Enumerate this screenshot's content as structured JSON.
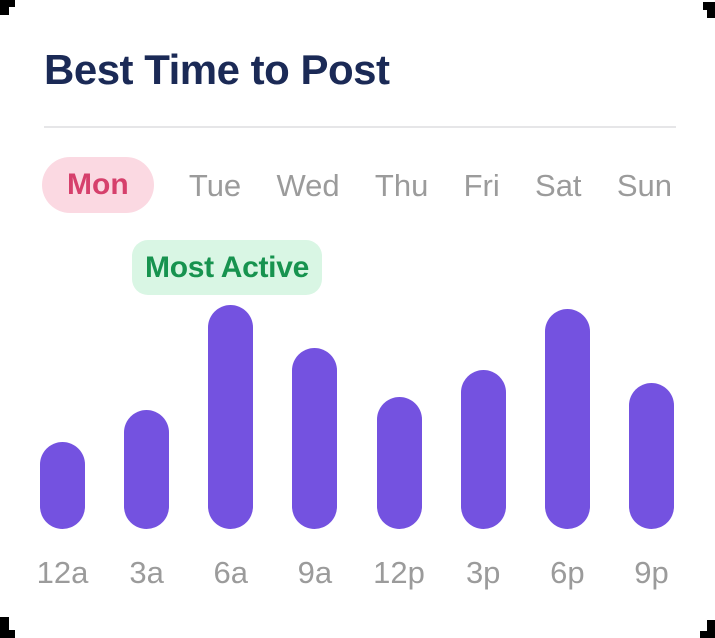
{
  "header": {
    "title": "Best Time to Post"
  },
  "day_tabs": {
    "items": [
      {
        "label": "Mon",
        "active": true
      },
      {
        "label": "Tue",
        "active": false
      },
      {
        "label": "Wed",
        "active": false
      },
      {
        "label": "Thu",
        "active": false
      },
      {
        "label": "Fri",
        "active": false
      },
      {
        "label": "Sat",
        "active": false
      },
      {
        "label": "Sun",
        "active": false
      }
    ]
  },
  "badge": {
    "label": "Most Active"
  },
  "colors": {
    "title": "#1b2a56",
    "bar": "#7452e0",
    "active_tab_bg": "#fbd9e2",
    "active_tab_text": "#d6406c",
    "inactive_tab_text": "#9b9b9b",
    "badge_bg": "#d9f6e4",
    "badge_text": "#17934f",
    "axis_label": "#9b9b9b",
    "divider": "#e6e6e8"
  },
  "chart_data": {
    "type": "bar",
    "title": "Best Time to Post",
    "selected_day": "Mon",
    "categories": [
      "12a",
      "3a",
      "6a",
      "9a",
      "12p",
      "3p",
      "6p",
      "9p"
    ],
    "values": [
      39,
      53,
      100,
      81,
      59,
      71,
      98,
      65
    ],
    "value_unit": "relative activity, % of peak hour",
    "annotations": [
      {
        "category": "6a",
        "label": "Most Active"
      }
    ],
    "xlabel": "",
    "ylabel": "",
    "ylim": [
      0,
      100
    ],
    "grid": false,
    "legend": false,
    "bar_color": "#7452e0"
  }
}
